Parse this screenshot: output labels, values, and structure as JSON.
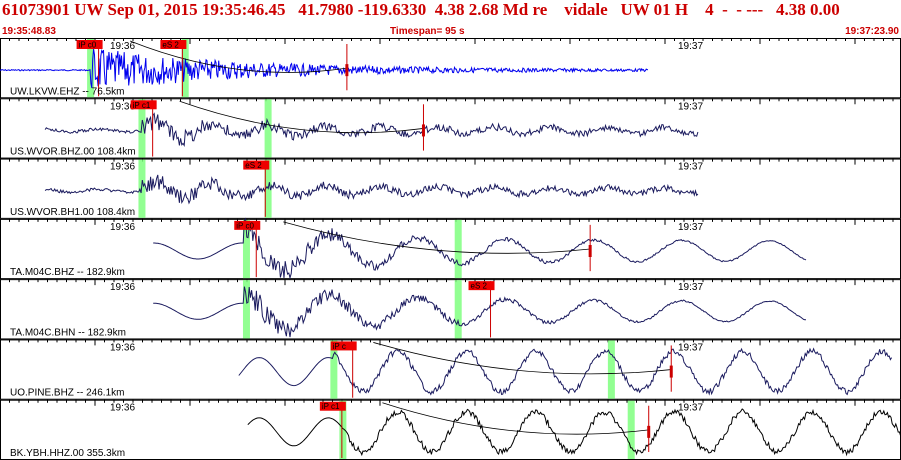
{
  "header": {
    "title": "61073901 UW Sep 01, 2015 19:35:46.45   41.7980 -119.6330  4.38 2.68 Md re    vidale   UW 01 H    4  -  - ---   4.38 0.00",
    "start_time": "19:35:48.83",
    "timespan": "Timespan=  95 s",
    "end_time": "19:37:23.90"
  },
  "colors": {
    "header_text": "#cc0000",
    "trace_first": "#0000ee",
    "trace": "#1a1a5e",
    "pick_box": "#ee0000",
    "pick_line": "#cc0000",
    "highlight": "#7fff7f"
  },
  "channels": [
    {
      "label": "UW.LKVW.EHZ -- 76.5km",
      "minute_label": "19:36",
      "minute_label2": "19:37",
      "start": 0.0,
      "end": 0.72,
      "onset": 0.1,
      "type": "hf",
      "color": "blue",
      "picks": [
        {
          "label": "iP c0",
          "pos": 0.085
        },
        {
          "label": "eS 2",
          "pos": 0.178
        }
      ],
      "highlights": [
        0.1,
        0.205
      ],
      "marker": 0.385
    },
    {
      "label": "US.WVOR.BHZ.00 108.4km",
      "minute_label": "19:36",
      "minute_label2": "19:37",
      "start": 0.05,
      "end": 0.775,
      "onset": 0.155,
      "type": "mid",
      "color": "navy",
      "picks": [
        {
          "label": "iP c1",
          "pos": 0.145
        }
      ],
      "highlights": [
        0.157,
        0.297
      ],
      "marker": 0.47
    },
    {
      "label": "US.WVOR.BH1.00 108.4km",
      "minute_label": "19:36",
      "minute_label2": "19:37",
      "start": 0.05,
      "end": 0.775,
      "onset": 0.155,
      "type": "mid",
      "color": "navy",
      "picks": [
        {
          "label": "eS 2",
          "pos": 0.27
        }
      ],
      "highlights": [
        0.157,
        0.297
      ],
      "marker": null
    },
    {
      "label": "TA.M04C.BHZ -- 182.9km",
      "minute_label": "19:36",
      "minute_label2": "19:37",
      "start": 0.17,
      "end": 0.895,
      "onset": 0.27,
      "type": "long",
      "color": "navy",
      "picks": [
        {
          "label": "iP c0",
          "pos": 0.26
        }
      ],
      "highlights": [
        0.273,
        0.508
      ],
      "marker": 0.655
    },
    {
      "label": "TA.M04C.BHN -- 182.9km",
      "minute_label": "19:36",
      "minute_label2": "19:37",
      "start": 0.17,
      "end": 0.895,
      "onset": 0.27,
      "type": "long",
      "color": "navy",
      "picks": [
        {
          "label": "eS 2",
          "pos": 0.52
        }
      ],
      "highlights": [
        0.273,
        0.508
      ],
      "marker": null
    },
    {
      "label": "UO.PINE.BHZ -- 246.1km",
      "minute_label": "19:36",
      "minute_label2": "19:37",
      "start": 0.265,
      "end": 0.99,
      "onset": 0.37,
      "type": "swell",
      "color": "navy",
      "picks": [
        {
          "label": "iP c",
          "pos": 0.367
        }
      ],
      "highlights": [
        0.37,
        0.678
      ],
      "marker": 0.745
    },
    {
      "label": "BK.YBH.HHZ.00 355.3km",
      "minute_label": "19:36",
      "minute_label2": "19:37",
      "start": 0.275,
      "end": 1.0,
      "onset": 0.38,
      "type": "swell",
      "color": "black",
      "picks": [
        {
          "label": "iP c1",
          "pos": 0.355
        }
      ],
      "highlights": [
        0.38,
        0.7
      ],
      "marker": 0.72
    }
  ]
}
